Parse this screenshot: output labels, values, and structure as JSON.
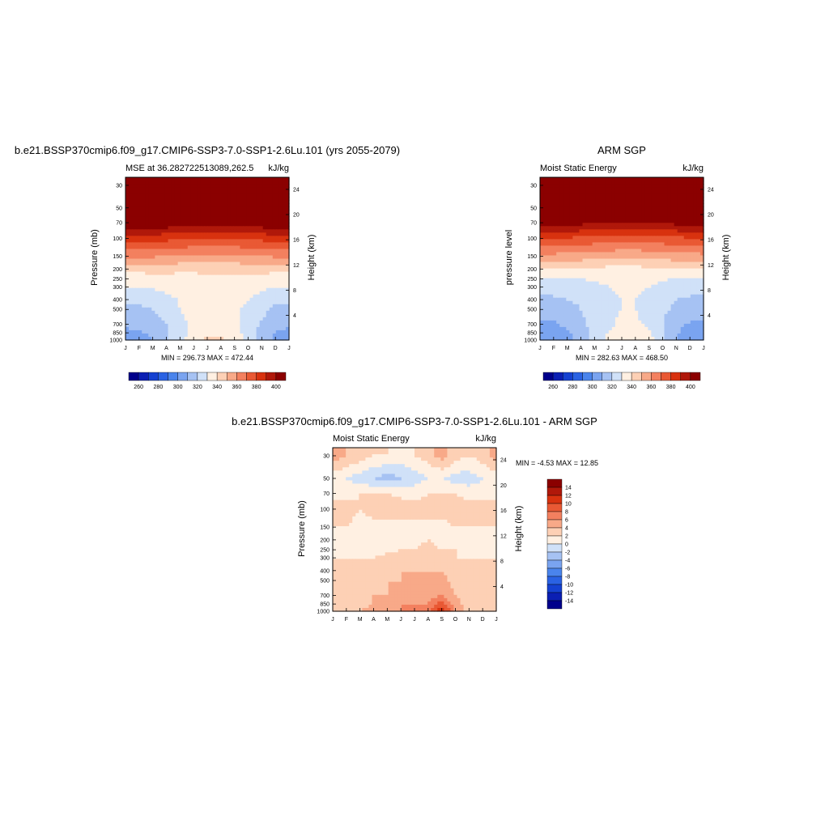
{
  "palette": [
    "#00008b",
    "#0b1fb3",
    "#1541d1",
    "#2a62e3",
    "#4a84ec",
    "#7aa4f0",
    "#a6c2f3",
    "#d0e1f8",
    "#fff0e2",
    "#fdd0b5",
    "#f8a988",
    "#f3805f",
    "#e95934",
    "#d8320f",
    "#b0180a",
    "#8b0000"
  ],
  "month_labels": [
    "J",
    "F",
    "M",
    "A",
    "M",
    "J",
    "J",
    "A",
    "S",
    "O",
    "N",
    "D",
    "J"
  ],
  "pressure_ticks": [
    30,
    50,
    70,
    100,
    150,
    200,
    250,
    300,
    400,
    500,
    700,
    850,
    1000
  ],
  "height_ticks": [
    4,
    8,
    12,
    16,
    20,
    24
  ],
  "panels": [
    {
      "title": "b.e21.BSSP370cmip6.f09_g17.CMIP6-SSP3-7.0-SSP1-2.6Lu.101 (yrs 2055-2079)",
      "left_string": "MSE at 36.282722513089,262.5",
      "right_string": "kJ/kg",
      "ylabel": "Pressure (mb)",
      "ylabel_right": "Height (km)",
      "minmax": "MIN = 296.73 MAX = 472.44",
      "colorbar_labels": [
        "260",
        "280",
        "300",
        "320",
        "340",
        "360",
        "380",
        "400"
      ]
    },
    {
      "title": "ARM SGP",
      "left_string": "Moist Static Energy",
      "right_string": "kJ/kg",
      "ylabel": "pressure level",
      "ylabel_right": "Height (km)",
      "minmax": "MIN = 282.63 MAX = 468.50",
      "colorbar_labels": [
        "260",
        "280",
        "300",
        "320",
        "340",
        "360",
        "380",
        "400"
      ]
    },
    {
      "title": "b.e21.BSSP370cmip6.f09_g17.CMIP6-SSP3-7.0-SSP1-2.6Lu.101 - ARM SGP",
      "left_string": "Moist Static Energy",
      "right_string": "kJ/kg",
      "ylabel": "Pressure (mb)",
      "ylabel_right": "Height (km)",
      "minmax": "MIN =  -4.53 MAX =  12.85",
      "colorbar_labels": [
        "14",
        "12",
        "10",
        "8",
        "6",
        "4",
        "2",
        "0",
        "-2",
        "-4",
        "-6",
        "-8",
        "-10",
        "-12",
        "-14"
      ]
    }
  ],
  "chart_data": [
    {
      "type": "heatmap",
      "x": [
        "J",
        "F",
        "M",
        "A",
        "M",
        "J",
        "J",
        "A",
        "S",
        "O",
        "N",
        "D",
        "J"
      ],
      "y": [
        30,
        50,
        70,
        100,
        150,
        200,
        250,
        300,
        400,
        500,
        700,
        850,
        1000
      ],
      "levels": [
        260,
        270,
        280,
        290,
        300,
        310,
        320,
        330,
        340,
        350,
        360,
        370,
        380,
        390,
        400
      ],
      "values": [
        [
          480,
          480,
          480,
          480,
          480,
          480,
          480,
          480,
          480,
          480,
          480,
          480,
          480
        ],
        [
          460,
          460,
          460,
          460,
          460,
          460,
          460,
          460,
          460,
          460,
          460,
          460,
          460
        ],
        [
          410,
          410,
          409,
          408,
          406,
          404,
          403,
          403,
          404,
          406,
          408,
          410,
          410
        ],
        [
          385,
          385,
          384,
          383,
          382,
          381,
          380,
          380,
          381,
          382,
          383,
          384,
          385
        ],
        [
          362,
          362,
          361,
          360,
          359,
          358,
          357,
          357,
          358,
          359,
          360,
          361,
          362
        ],
        [
          345,
          345,
          345,
          344,
          343,
          342,
          342,
          342,
          343,
          344,
          345,
          345,
          345
        ],
        [
          333,
          333,
          334,
          335,
          336,
          337,
          338,
          338,
          337,
          336,
          334,
          333,
          333
        ],
        [
          330,
          330,
          331,
          333,
          335,
          337,
          338,
          338,
          336,
          334,
          332,
          330,
          330
        ],
        [
          322,
          322,
          324,
          327,
          331,
          334,
          336,
          336,
          333,
          330,
          326,
          322,
          322
        ],
        [
          318,
          318,
          320,
          324,
          330,
          334,
          336,
          335,
          332,
          328,
          323,
          318,
          318
        ],
        [
          312,
          313,
          315,
          320,
          327,
          333,
          336,
          336,
          332,
          326,
          318,
          314,
          312
        ],
        [
          307,
          309,
          312,
          318,
          326,
          333,
          338,
          338,
          334,
          326,
          316,
          310,
          307
        ],
        [
          303,
          305,
          310,
          318,
          328,
          337,
          342,
          342,
          338,
          328,
          316,
          308,
          303
        ]
      ]
    },
    {
      "type": "heatmap",
      "x": [
        "J",
        "F",
        "M",
        "A",
        "M",
        "J",
        "J",
        "A",
        "S",
        "O",
        "N",
        "D",
        "J"
      ],
      "y": [
        30,
        50,
        70,
        100,
        150,
        200,
        250,
        300,
        400,
        500,
        700,
        850,
        1000
      ],
      "levels": [
        260,
        270,
        280,
        290,
        300,
        310,
        320,
        330,
        340,
        350,
        360,
        370,
        380,
        390,
        400
      ],
      "values": [
        [
          475,
          475,
          475,
          475,
          475,
          475,
          475,
          475,
          475,
          475,
          475,
          475,
          475
        ],
        [
          455,
          455,
          455,
          455,
          455,
          455,
          455,
          455,
          455,
          455,
          455,
          455,
          455
        ],
        [
          405,
          405,
          404,
          403,
          401,
          399,
          398,
          398,
          399,
          401,
          403,
          405,
          405
        ],
        [
          380,
          380,
          379,
          378,
          377,
          376,
          375,
          375,
          376,
          377,
          378,
          379,
          380
        ],
        [
          357,
          357,
          356,
          355,
          354,
          353,
          352,
          352,
          353,
          354,
          355,
          356,
          357
        ],
        [
          340,
          340,
          340,
          339,
          338,
          337,
          337,
          337,
          338,
          339,
          340,
          340,
          340
        ],
        [
          328,
          328,
          329,
          330,
          331,
          332,
          333,
          333,
          332,
          331,
          329,
          328,
          328
        ],
        [
          325,
          325,
          326,
          327,
          328,
          330,
          332,
          332,
          330,
          328,
          326,
          325,
          325
        ],
        [
          318,
          318,
          320,
          322,
          325,
          328,
          330,
          330,
          327,
          323,
          320,
          318,
          318
        ],
        [
          314,
          314,
          316,
          320,
          324,
          328,
          330,
          330,
          326,
          322,
          318,
          314,
          314
        ],
        [
          308,
          309,
          312,
          318,
          324,
          328,
          332,
          332,
          328,
          320,
          313,
          309,
          308
        ],
        [
          303,
          305,
          309,
          315,
          323,
          330,
          336,
          336,
          331,
          320,
          311,
          305,
          303
        ],
        [
          299,
          301,
          306,
          314,
          324,
          333,
          338,
          338,
          334,
          322,
          310,
          302,
          299
        ]
      ]
    },
    {
      "type": "heatmap",
      "x": [
        "J",
        "F",
        "M",
        "A",
        "M",
        "J",
        "J",
        "A",
        "S",
        "O",
        "N",
        "D",
        "J"
      ],
      "y": [
        30,
        50,
        70,
        100,
        150,
        200,
        250,
        300,
        400,
        500,
        700,
        850,
        1000
      ],
      "levels": [
        -14,
        -12,
        -10,
        -8,
        -6,
        -4,
        -2,
        0,
        2,
        4,
        6,
        8,
        10,
        12,
        14
      ],
      "values": [
        [
          5,
          4,
          3,
          2,
          2,
          1,
          2,
          3,
          5,
          3,
          2,
          3,
          5
        ],
        [
          1,
          0,
          -1,
          -2,
          -3,
          -2,
          -1,
          0,
          0,
          -1,
          -1,
          0,
          1
        ],
        [
          1,
          1,
          2,
          2,
          2,
          1,
          1,
          2,
          2,
          2,
          1,
          1,
          1
        ],
        [
          3,
          3,
          2,
          3,
          4,
          4,
          3,
          3,
          3,
          4,
          3,
          3,
          3
        ],
        [
          2,
          2,
          1,
          1,
          0,
          1,
          1,
          1,
          1,
          2,
          2,
          2,
          2
        ],
        [
          1,
          1,
          1,
          0,
          0,
          1,
          1,
          2,
          1,
          1,
          1,
          1,
          1
        ],
        [
          1,
          1,
          1,
          1,
          1,
          2,
          2,
          3,
          2,
          2,
          1,
          1,
          1
        ],
        [
          2,
          2,
          2,
          2,
          3,
          3,
          3,
          3,
          3,
          2,
          2,
          2,
          2
        ],
        [
          3,
          3,
          3,
          3,
          3,
          4,
          4,
          4,
          4,
          3,
          3,
          3,
          3
        ],
        [
          3,
          3,
          3,
          3,
          4,
          4,
          4,
          4,
          5,
          3,
          3,
          3,
          3
        ],
        [
          2,
          3,
          3,
          4,
          4,
          5,
          5,
          5,
          6,
          4,
          3,
          2,
          2
        ],
        [
          2,
          3,
          3,
          4,
          5,
          6,
          6,
          6,
          9,
          5,
          3,
          2,
          2
        ],
        [
          2,
          3,
          4,
          5,
          6,
          6,
          6,
          7,
          12,
          5,
          3,
          2,
          2
        ]
      ]
    }
  ]
}
